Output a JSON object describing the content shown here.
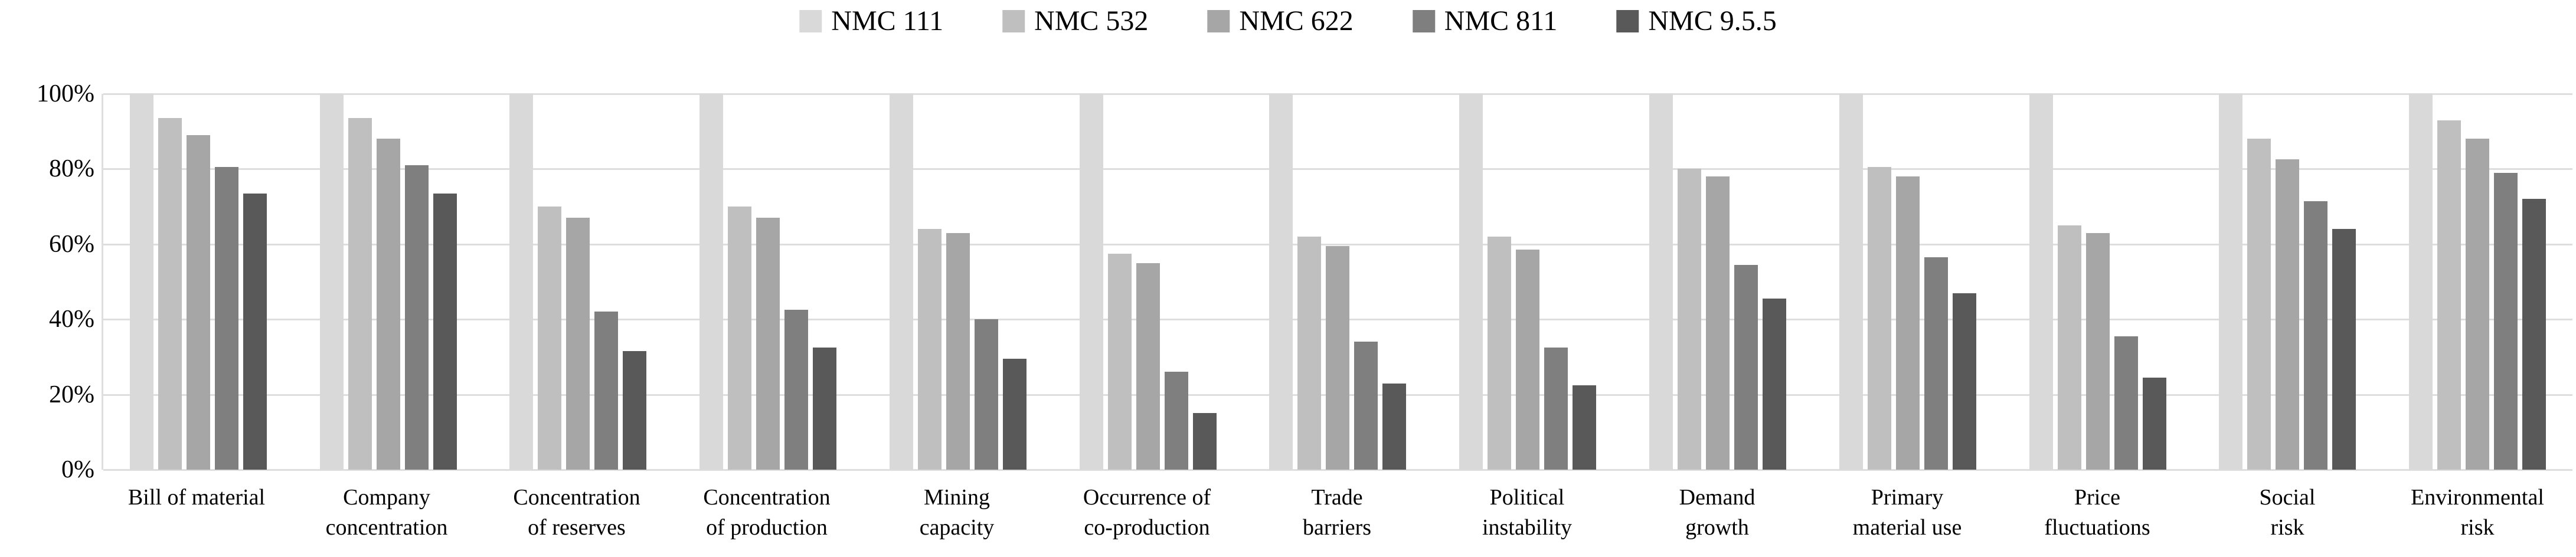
{
  "colors": {
    "background": "#ffffff",
    "gridline": "#dedede",
    "text": "#000000"
  },
  "y_axis": {
    "ticks": [
      "100%",
      "80%",
      "60%",
      "40%",
      "20%",
      "0%"
    ]
  },
  "chart_data": {
    "type": "bar",
    "title": "",
    "xlabel": "",
    "ylabel": "",
    "ylim": [
      0,
      100
    ],
    "grid": "horizontal",
    "legend_position": "top-center",
    "y_tick_labels": [
      "100%",
      "80%",
      "60%",
      "40%",
      "20%",
      "0%"
    ],
    "categories": [
      "Bill of material",
      "Company\nconcentration",
      "Concentration\nof reserves",
      "Concentration\nof production",
      "Mining\ncapacity",
      "Occurrence of\nco-production",
      "Trade\nbarriers",
      "Political\ninstability",
      "Demand\ngrowth",
      "Primary\nmaterial use",
      "Price\nfluctuations",
      "Social\nrisk",
      "Environmental\nrisk"
    ],
    "series": [
      {
        "name": "NMC 111",
        "color": "#d9d9d9",
        "values": [
          100,
          100,
          100,
          100,
          100,
          100,
          100,
          100,
          100,
          100,
          100,
          100,
          100
        ]
      },
      {
        "name": "NMC 532",
        "color": "#bfbfbf",
        "values": [
          93.5,
          93.5,
          70,
          70,
          64,
          57.5,
          62,
          62,
          80,
          80.5,
          65,
          88,
          93
        ]
      },
      {
        "name": "NMC 622",
        "color": "#a6a6a6",
        "values": [
          89,
          88,
          67,
          67,
          63,
          55,
          59.5,
          58.5,
          78,
          78,
          63,
          82.5,
          88
        ]
      },
      {
        "name": "NMC 811",
        "color": "#7f7f7f",
        "values": [
          80.5,
          81,
          42,
          42.5,
          40,
          26,
          34,
          32.5,
          54.5,
          56.5,
          35.5,
          71.5,
          79
        ]
      },
      {
        "name": "NMC 9.5.5",
        "color": "#595959",
        "values": [
          73.5,
          73.5,
          31.5,
          32.5,
          29.5,
          15,
          23,
          22.5,
          45.5,
          47,
          24.5,
          64,
          72
        ]
      }
    ]
  }
}
